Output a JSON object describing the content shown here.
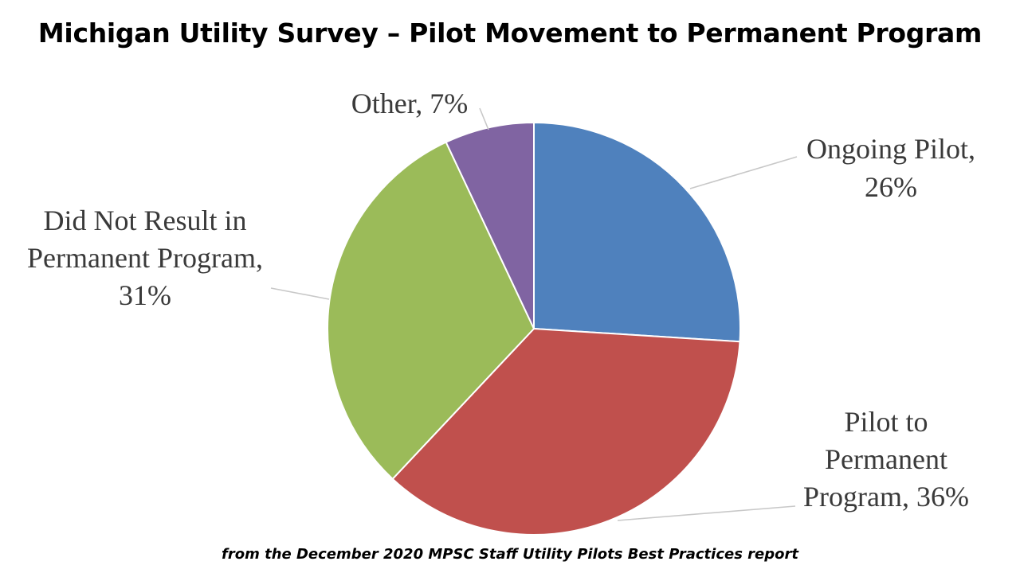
{
  "chart_data": {
    "type": "pie",
    "title": "Michigan Utility Survey – Pilot Movement to Permanent Program",
    "slices": [
      {
        "label": "Ongoing Pilot",
        "value": 26,
        "color": "#4f81bd",
        "label_lines": [
          "Ongoing Pilot,",
          "26%"
        ]
      },
      {
        "label": "Pilot to Permanent Program",
        "value": 36,
        "color": "#c0504d",
        "label_lines": [
          "Pilot to",
          "Permanent",
          "Program, 36%"
        ]
      },
      {
        "label": "Did Not Result in Permanent Program",
        "value": 31,
        "color": "#9bbb59",
        "label_lines": [
          "Did Not Result in",
          "Permanent Program,",
          "31%"
        ]
      },
      {
        "label": "Other",
        "value": 7,
        "color": "#8064a2",
        "label_lines": [
          "Other, 7%"
        ]
      }
    ],
    "caption": "from the December 2020 MPSC Staff Utility Pilots Best Practices report"
  }
}
